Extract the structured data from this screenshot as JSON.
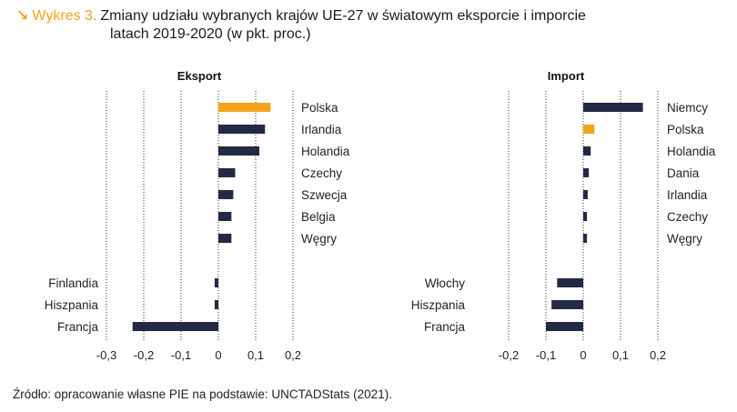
{
  "header": {
    "arrow": "↘",
    "label": "Wykres 3.",
    "title_line1": "Zmiany udziału wybranych krajów UE-27 w światowym eksporcie i imporcie",
    "title_line2": "latach 2019-2020 (w pkt. proc.)"
  },
  "source": "Źródło: opracowanie własne PIE na podstawie: UNCTADStats (2021).",
  "colors": {
    "highlight": "#f2a31a",
    "bar": "#232a45",
    "grid": "#333333"
  },
  "chart_data": [
    {
      "type": "bar",
      "orientation": "horizontal",
      "title": "Eksport",
      "xlim": [
        -0.3,
        0.2
      ],
      "ticks": [
        -0.3,
        -0.2,
        -0.1,
        0,
        0.1,
        0.2
      ],
      "tick_labels": [
        "-0,3",
        "-0,2",
        "-0,1",
        "0",
        "0,1",
        "0,2"
      ],
      "grid": "dotted-vertical",
      "categories": [
        "Polska",
        "Irlandia",
        "Holandia",
        "Czechy",
        "Szwecja",
        "Belgia",
        "Węgry",
        "Finlandia",
        "Hiszpania",
        "Francja"
      ],
      "values": [
        0.14,
        0.125,
        0.11,
        0.045,
        0.04,
        0.035,
        0.035,
        -0.01,
        -0.01,
        -0.23
      ],
      "highlight": [
        "Polska"
      ]
    },
    {
      "type": "bar",
      "orientation": "horizontal",
      "title": "Import",
      "xlim": [
        -0.2,
        0.2
      ],
      "ticks": [
        -0.2,
        -0.1,
        0,
        0.1,
        0.2
      ],
      "tick_labels": [
        "-0,2",
        "-0,1",
        "0",
        "0,1",
        "0,2"
      ],
      "grid": "dotted-vertical",
      "categories": [
        "Niemcy",
        "Polska",
        "Holandia",
        "Dania",
        "Irlandia",
        "Czechy",
        "Węgry",
        "Włochy",
        "Hiszpania",
        "Francja"
      ],
      "values": [
        0.16,
        0.03,
        0.02,
        0.015,
        0.012,
        0.01,
        0.01,
        -0.07,
        -0.085,
        -0.1
      ],
      "highlight": [
        "Polska"
      ]
    }
  ]
}
